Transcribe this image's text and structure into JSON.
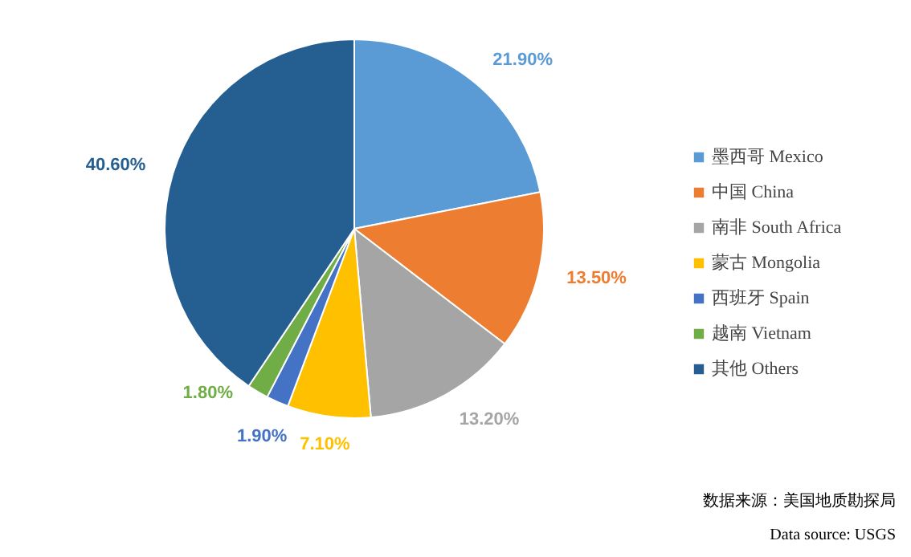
{
  "chart_data": {
    "type": "pie",
    "categories": [
      "墨西哥 Mexico",
      "中国 China",
      "南非 South Africa",
      "蒙古 Mongolia",
      "西班牙 Spain",
      "越南 Vietnam",
      "其他 Others"
    ],
    "values": [
      21.9,
      13.5,
      13.2,
      7.1,
      1.9,
      1.8,
      40.6
    ],
    "colors": [
      "#5b9bd5",
      "#ed7d31",
      "#a5a5a5",
      "#ffc000",
      "#4472c4",
      "#70ad47",
      "#255e91"
    ],
    "value_labels": [
      "21.90%",
      "13.50%",
      "13.20%",
      "7.10%",
      "1.90%",
      "1.80%",
      "40.60%"
    ],
    "legend": "right",
    "annotations": [
      "数据来源：美国地质勘探局",
      "Data source: USGS"
    ]
  }
}
